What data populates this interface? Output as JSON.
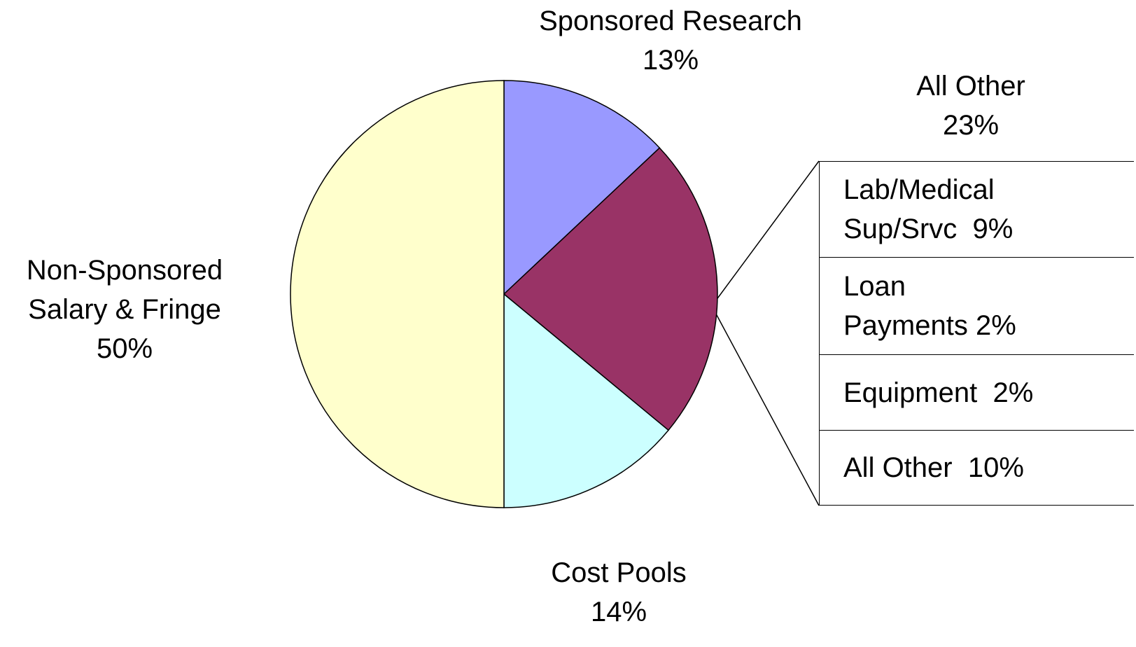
{
  "chart_data": {
    "type": "pie",
    "categories": [
      "Sponsored Research",
      "All Other",
      "Cost Pools",
      "Non-Sponsored\nSalary & Fringe"
    ],
    "values": [
      13,
      23,
      14,
      50
    ],
    "value_labels": [
      "13%",
      "23%",
      "14%",
      "50%"
    ],
    "colors": [
      "#9999ff",
      "#993366",
      "#ccffff",
      "#ffffcc"
    ]
  },
  "breakdown": {
    "rows": [
      "Lab/Medical\nSup/Srvc  9%",
      "Loan\nPayments 2%",
      "Equipment  2%",
      "All Other  10%"
    ]
  }
}
